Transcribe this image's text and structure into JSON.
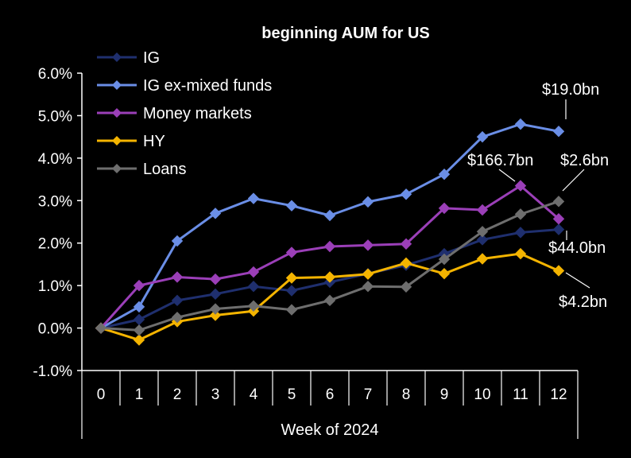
{
  "chart_data": {
    "type": "line",
    "title": "beginning  AUM  for US",
    "xlabel": "Week of 2024",
    "ylabel": "",
    "x": [
      0,
      1,
      2,
      3,
      4,
      5,
      6,
      7,
      8,
      9,
      10,
      11,
      12
    ],
    "ylim": [
      -1.0,
      6.0
    ],
    "yticks": [
      "-1.0%",
      "0.0%",
      "1.0%",
      "2.0%",
      "3.0%",
      "4.0%",
      "5.0%",
      "6.0%"
    ],
    "grid": false,
    "legend_position": "top-left",
    "series": [
      {
        "name": "IG",
        "color": "#1f2f6e",
        "values": [
          0.0,
          0.2,
          0.65,
          0.8,
          0.98,
          0.88,
          1.08,
          1.28,
          1.48,
          1.75,
          2.08,
          2.25,
          2.32
        ]
      },
      {
        "name": "IG ex-mixed funds",
        "color": "#6a8ee6",
        "values": [
          0.0,
          0.5,
          2.05,
          2.7,
          3.05,
          2.88,
          2.65,
          2.97,
          3.15,
          3.62,
          4.5,
          4.8,
          4.63
        ]
      },
      {
        "name": "Money markets",
        "color": "#9b3fb8",
        "values": [
          0.0,
          1.0,
          1.2,
          1.15,
          1.32,
          1.78,
          1.92,
          1.95,
          1.98,
          2.82,
          2.78,
          3.35,
          2.57
        ]
      },
      {
        "name": "HY",
        "color": "#f4b400",
        "values": [
          0.0,
          -0.28,
          0.15,
          0.3,
          0.4,
          1.18,
          1.2,
          1.27,
          1.53,
          1.28,
          1.63,
          1.75,
          1.35
        ]
      },
      {
        "name": "Loans",
        "color": "#6e6e6e",
        "values": [
          0.0,
          -0.05,
          0.25,
          0.45,
          0.52,
          0.43,
          0.65,
          0.98,
          0.97,
          1.62,
          2.27,
          2.68,
          2.98
        ]
      }
    ],
    "annotations": [
      {
        "text": "$19.0bn",
        "series": "IG ex-mixed funds"
      },
      {
        "text": "$166.7bn",
        "series": "Money markets"
      },
      {
        "text": "$2.6bn",
        "series": "Loans"
      },
      {
        "text": "$44.0bn",
        "series": "IG"
      },
      {
        "text": "$4.2bn",
        "series": "HY"
      }
    ]
  }
}
